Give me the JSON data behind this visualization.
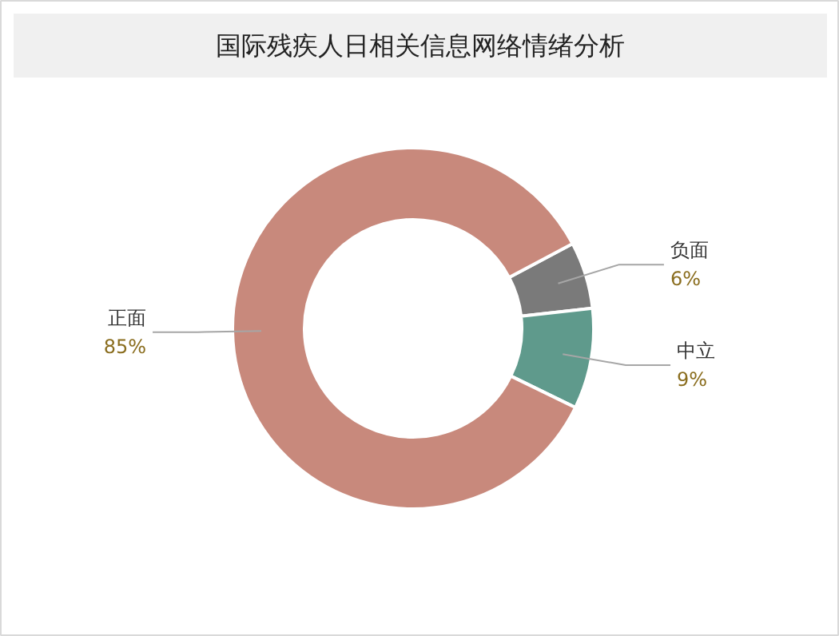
{
  "chart_data": {
    "type": "donut",
    "title": "国际残疾人日相关信息网络情绪分析",
    "categories": [
      "负面",
      "中立",
      "正面"
    ],
    "values": [
      6,
      9,
      85
    ],
    "colors": [
      "#7a7a7a",
      "#5f9a8c",
      "#c8897c"
    ],
    "value_labels": [
      "6%",
      "9%",
      "85%"
    ]
  }
}
